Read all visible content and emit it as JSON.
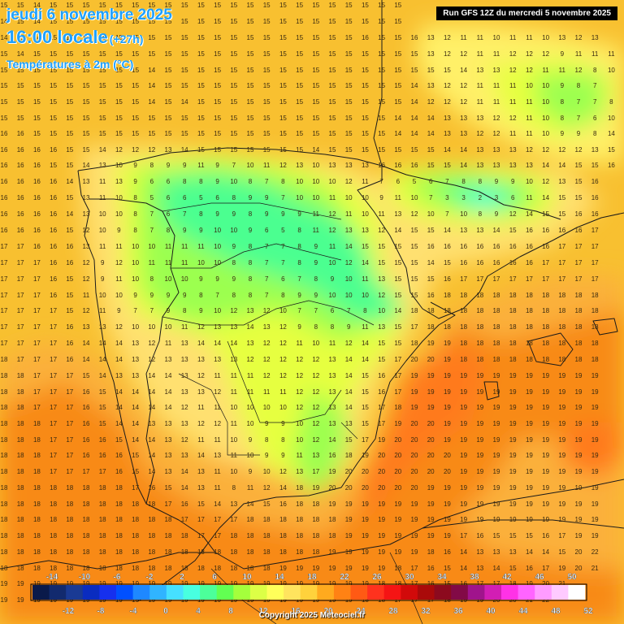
{
  "header": {
    "date": "jeudi 6 novembre 2025",
    "time": "16:00 locale",
    "lead": "(+27h)",
    "parameter": "Températures à 2m (°C)"
  },
  "run_label": "Run GFS 12Z du mercredi 5 novembre 2025",
  "copyright": "Copyright 2025 Meteociel.fr",
  "legend": {
    "values": [
      -14,
      -12,
      -10,
      -8,
      -6,
      -4,
      -2,
      0,
      2,
      4,
      6,
      8,
      10,
      12,
      14,
      16,
      18,
      20,
      22,
      24,
      26,
      28,
      30,
      32,
      34,
      36,
      38,
      40,
      42,
      44,
      46,
      48,
      50,
      52
    ],
    "colors": [
      "#0a1a4a",
      "#122a6e",
      "#1a3a94",
      "#0a2cc0",
      "#1630ee",
      "#0050ff",
      "#1e88ff",
      "#30b4ff",
      "#46e0ff",
      "#48ffe0",
      "#4cff9a",
      "#62ff52",
      "#a4ff3c",
      "#dcff46",
      "#ffff5a",
      "#ffe45e",
      "#ffd23c",
      "#ffaa1e",
      "#ff8214",
      "#ff5a14",
      "#ff321e",
      "#f51414",
      "#d20a0a",
      "#aa0a0a",
      "#8c0a1e",
      "#820a46",
      "#a0148c",
      "#d21eb4",
      "#ff32e6",
      "#ff64ff",
      "#ff9cff",
      "#ffcaff",
      "#ffffff"
    ]
  },
  "map": {
    "rows": [
      {
        "y": 5,
        "values": "15 15 14 15 15 15 15 15 15 15 15 15 15 15 15 15 15 15 15 15 15 15 15 15 15 15 15 15 15 15 15 15 15 15 15 15 15 15"
      },
      {
        "y": 25,
        "values": "14 15 14 15 15 15 15 15 15 15 15 15 15 15 15 15 15 15 15 15 15 15 15 15 15 15 15 15 15 15 15 15 15 15 15 15 15 15"
      },
      {
        "y": 45,
        "values": "14 15 14 15 15 15 15 15 15 15 15 15 15 15 15 15 15 15 15 15 15 15 16 15 15 16 13 12 11 11 10 11 11 10 13 12 13"
      },
      {
        "y": 65,
        "values": "15 14 15 15 15 15 15 15 15 15 15 15 15 15 15 15 15 15 15 15 15 15 15 15 15 15 13 12 12 11 11 12 12 12 9 11 11 11 12"
      },
      {
        "y": 85,
        "values": "15 15 15 15 15 15 15 15 15 14 15 15 15 15 15 15 15 15 15 15 15 15 15 15 15 15 15 15 14 13 13 12 12 11 11 12 8 10 11 11"
      },
      {
        "y": 104,
        "values": "15 15 15 15 15 15 15 15 15 14 15 15 15 15 15 15 15 15 15 15 15 15 15 15 15 14 13 12 12 11 11 11 10 10 9 8 7"
      },
      {
        "y": 124,
        "values": "15 15 15 15 15 15 15 15 15 14 15 14 15 15 15 15 15 15 15 15 15 15 15 15 15 14 12 12 12 11 11 11 11 10 8 7 7 8"
      },
      {
        "y": 144,
        "values": "15 15 15 15 15 15 15 15 15 15 15 15 15 15 15 15 15 15 15 15 15 15 15 15 14 14 14 13 13 13 12 12 11 10 8 7 6 10"
      },
      {
        "y": 163,
        "values": "16 16 15 15 15 15 15 15 15 15 15 15 15 15 15 15 15 15 15 15 15 15 15 15 14 14 14 13 13 12 12 11 11 10 9 9 8 14"
      },
      {
        "y": 183,
        "values": "16 16 16 16 15 15 14 12 12 12 13 14 15 15 15 15 15 15 15 14 15 15 15 15 15 15 15 14 14 13 13 13 12 12 12 12 13 15"
      },
      {
        "y": 202,
        "values": "16 16 16 15 15 14 13 10 9 8 9 9 11 9 7 10 11 12 13 10 13 13 13 16 16 16 15 15 14 13 13 13 13 14 14 15 15 16"
      },
      {
        "y": 222,
        "values": "16 16 16 16 14 13 11 13 9 6 6 8 8 9 10 8 7 8 10 10 10 12 11 7 6 5 6 7 8 8 9 9 10 12 13 15 16"
      },
      {
        "y": 242,
        "values": "16 16 16 16 15 13 11 10 8 5 6 6 5 6 8 9 9 7 10 10 11 10 10 9 11 10 7 3 3 2 3 6 11 14 15 15 16"
      },
      {
        "y": 262,
        "values": "16 16 16 16 14 13 10 10 8 7 6 7 8 9 9 8 9 9 9 11 12 11 10 11 13 12 10 7 10 8 9 12 14 15 15 16 16"
      },
      {
        "y": 282,
        "values": "16 16 16 16 15 12 10 9 8 7 8 9 9 10 10 9 6 5 8 11 12 13 13 12 14 15 15 14 13 13 14 15 16 16 16 16 17"
      },
      {
        "y": 302,
        "values": "17 17 16 16 16 13 11 11 10 10 11 11 11 10 9 8 7 7 8 9 11 14 15 15 15 15 16 16 16 16 16 16 16 16 17 17 17"
      },
      {
        "y": 322,
        "values": "17 17 17 16 16 12 9 12 10 11 11 11 10 10 8 8 7 7 8 9 10 12 14 15 15 15 14 15 16 16 16 16 16 17 17 17 17"
      },
      {
        "y": 342,
        "values": "17 17 17 16 15 12 9 11 10 8 10 10 9 9 9 8 7 6 7 8 9 10 11 13 15 15 15 16 17 17 17 17 17 17 17 17 17"
      },
      {
        "y": 362,
        "values": "17 17 17 16 15 11 10 10 9 9 9 9 8 7 8 8 7 8 9 9 10 10 10 12 15 15 16 18 18 18 18 18 18 18 18 18 18"
      },
      {
        "y": 381,
        "values": "17 17 17 17 15 12 11 9 7 7 9 8 9 10 12 13 12 10 7 7 6 7 8 10 14 18 18 18 18 18 18 18 18 18 18 18 18"
      },
      {
        "y": 401,
        "values": "17 17 17 17 16 13 13 12 10 10 10 11 12 13 13 14 13 12 9 8 8 9 11 13 15 17 18 18 18 18 18 18 18 18 18 18 18"
      },
      {
        "y": 421,
        "values": "17 17 17 17 16 14 14 14 13 12 11 13 14 14 14 13 12 12 11 10 11 12 14 15 15 18 19 19 18 18 18 18 18 18 18 18 18"
      },
      {
        "y": 441,
        "values": "18 17 17 17 16 14 14 14 13 12 13 13 13 13 13 12 12 12 12 12 13 14 14 15 17 20 20 19 18 18 18 18 18 18 18 18 18"
      },
      {
        "y": 461,
        "values": "18 18 17 17 17 15 14 13 13 14 14 13 12 11 11 11 12 12 12 12 13 14 15 16 17 19 19 19 19 19 19 19 19 19 19 19 19"
      },
      {
        "y": 481,
        "values": "18 18 17 17 17 16 15 14 14 14 14 13 13 12 11 11 11 11 12 12 13 14 15 16 17 19 19 19 19 19 19 19 19 19 19 19 19"
      },
      {
        "y": 500,
        "values": "18 18 17 17 17 16 15 14 14 14 14 12 11 11 10 10 10 10 12 12 13 14 15 17 18 19 19 19 19 19 19 19 19 19 19 19 19"
      },
      {
        "y": 520,
        "values": "18 18 18 17 17 16 15 14 14 13 13 13 12 12 11 10 9 9 10 12 13 13 15 17 19 20 20 19 19 19 19 19 19 19 19 19 19"
      },
      {
        "y": 540,
        "values": "18 18 18 17 17 16 16 15 14 14 13 12 11 11 10 9 8 8 10 12 14 15 17 19 20 20 20 19 19 19 19 19 19 19 19 19 19"
      },
      {
        "y": 559,
        "values": "18 18 18 17 17 16 16 16 15 14 13 13 14 13 11 10 9 9 11 13 16 18 19 20 20 20 20 20 19 19 19 19 19 19 19 19 19"
      },
      {
        "y": 579,
        "values": "18 18 18 17 17 17 17 16 15 14 13 14 13 11 10 9 10 12 13 17 19 20 20 20 20 20 20 20 19 19 19 19 19 19 19 19 19"
      },
      {
        "y": 599,
        "values": "18 18 18 18 18 18 18 18 17 16 15 14 13 11 8 11 12 14 18 19 20 20 20 20 20 20 19 19 19 19 19 19 19 19 19 19 19"
      },
      {
        "y": 619,
        "values": "18 18 18 18 18 18 18 18 18 18 17 16 15 14 13 14 15 16 18 18 19 19 19 19 19 19 19 19 19 19 19 19 19 19 19 19 19"
      },
      {
        "y": 638,
        "values": "18 18 18 18 18 18 18 18 18 18 18 17 17 17 17 18 18 18 18 18 18 19 19 19 19 19 19 19 19 19 19 19 19 19 19 19 19"
      },
      {
        "y": 658,
        "values": "18 18 18 18 18 18 18 18 18 18 18 18 17 17 18 18 18 18 18 18 18 19 19 19 19 19 19 19 17 16 15 15 15 16 17 19 19"
      },
      {
        "y": 678,
        "values": "18 18 18 18 18 18 18 18 18 18 18 18 18 18 18 18 18 18 18 18 19 19 19 19 19 19 18 16 14 13 13 13 14 14 15 20 22"
      },
      {
        "y": 698,
        "values": "18 18 18 18 18 18 18 18 18 18 18 18 18 18 18 18 18 19 19 19 19 19 19 19 18 17 16 15 14 13 14 15 16 17 19 20 21"
      },
      {
        "y": 717,
        "values": "19 19 19 19 19 19 19 19 19 19 19 19 19 19 19 19 19 19 19 19 19 19 19 18 18 17 16 15 16 17 17 18 19 20 21"
      },
      {
        "y": 737,
        "values": "19 19 19 19 19 19 19 19 19 19 19 19 19 19 19 19 19 19 19 19 19 19 18 18 17 17 17 18 19 19 20 20 21 22"
      }
    ]
  }
}
